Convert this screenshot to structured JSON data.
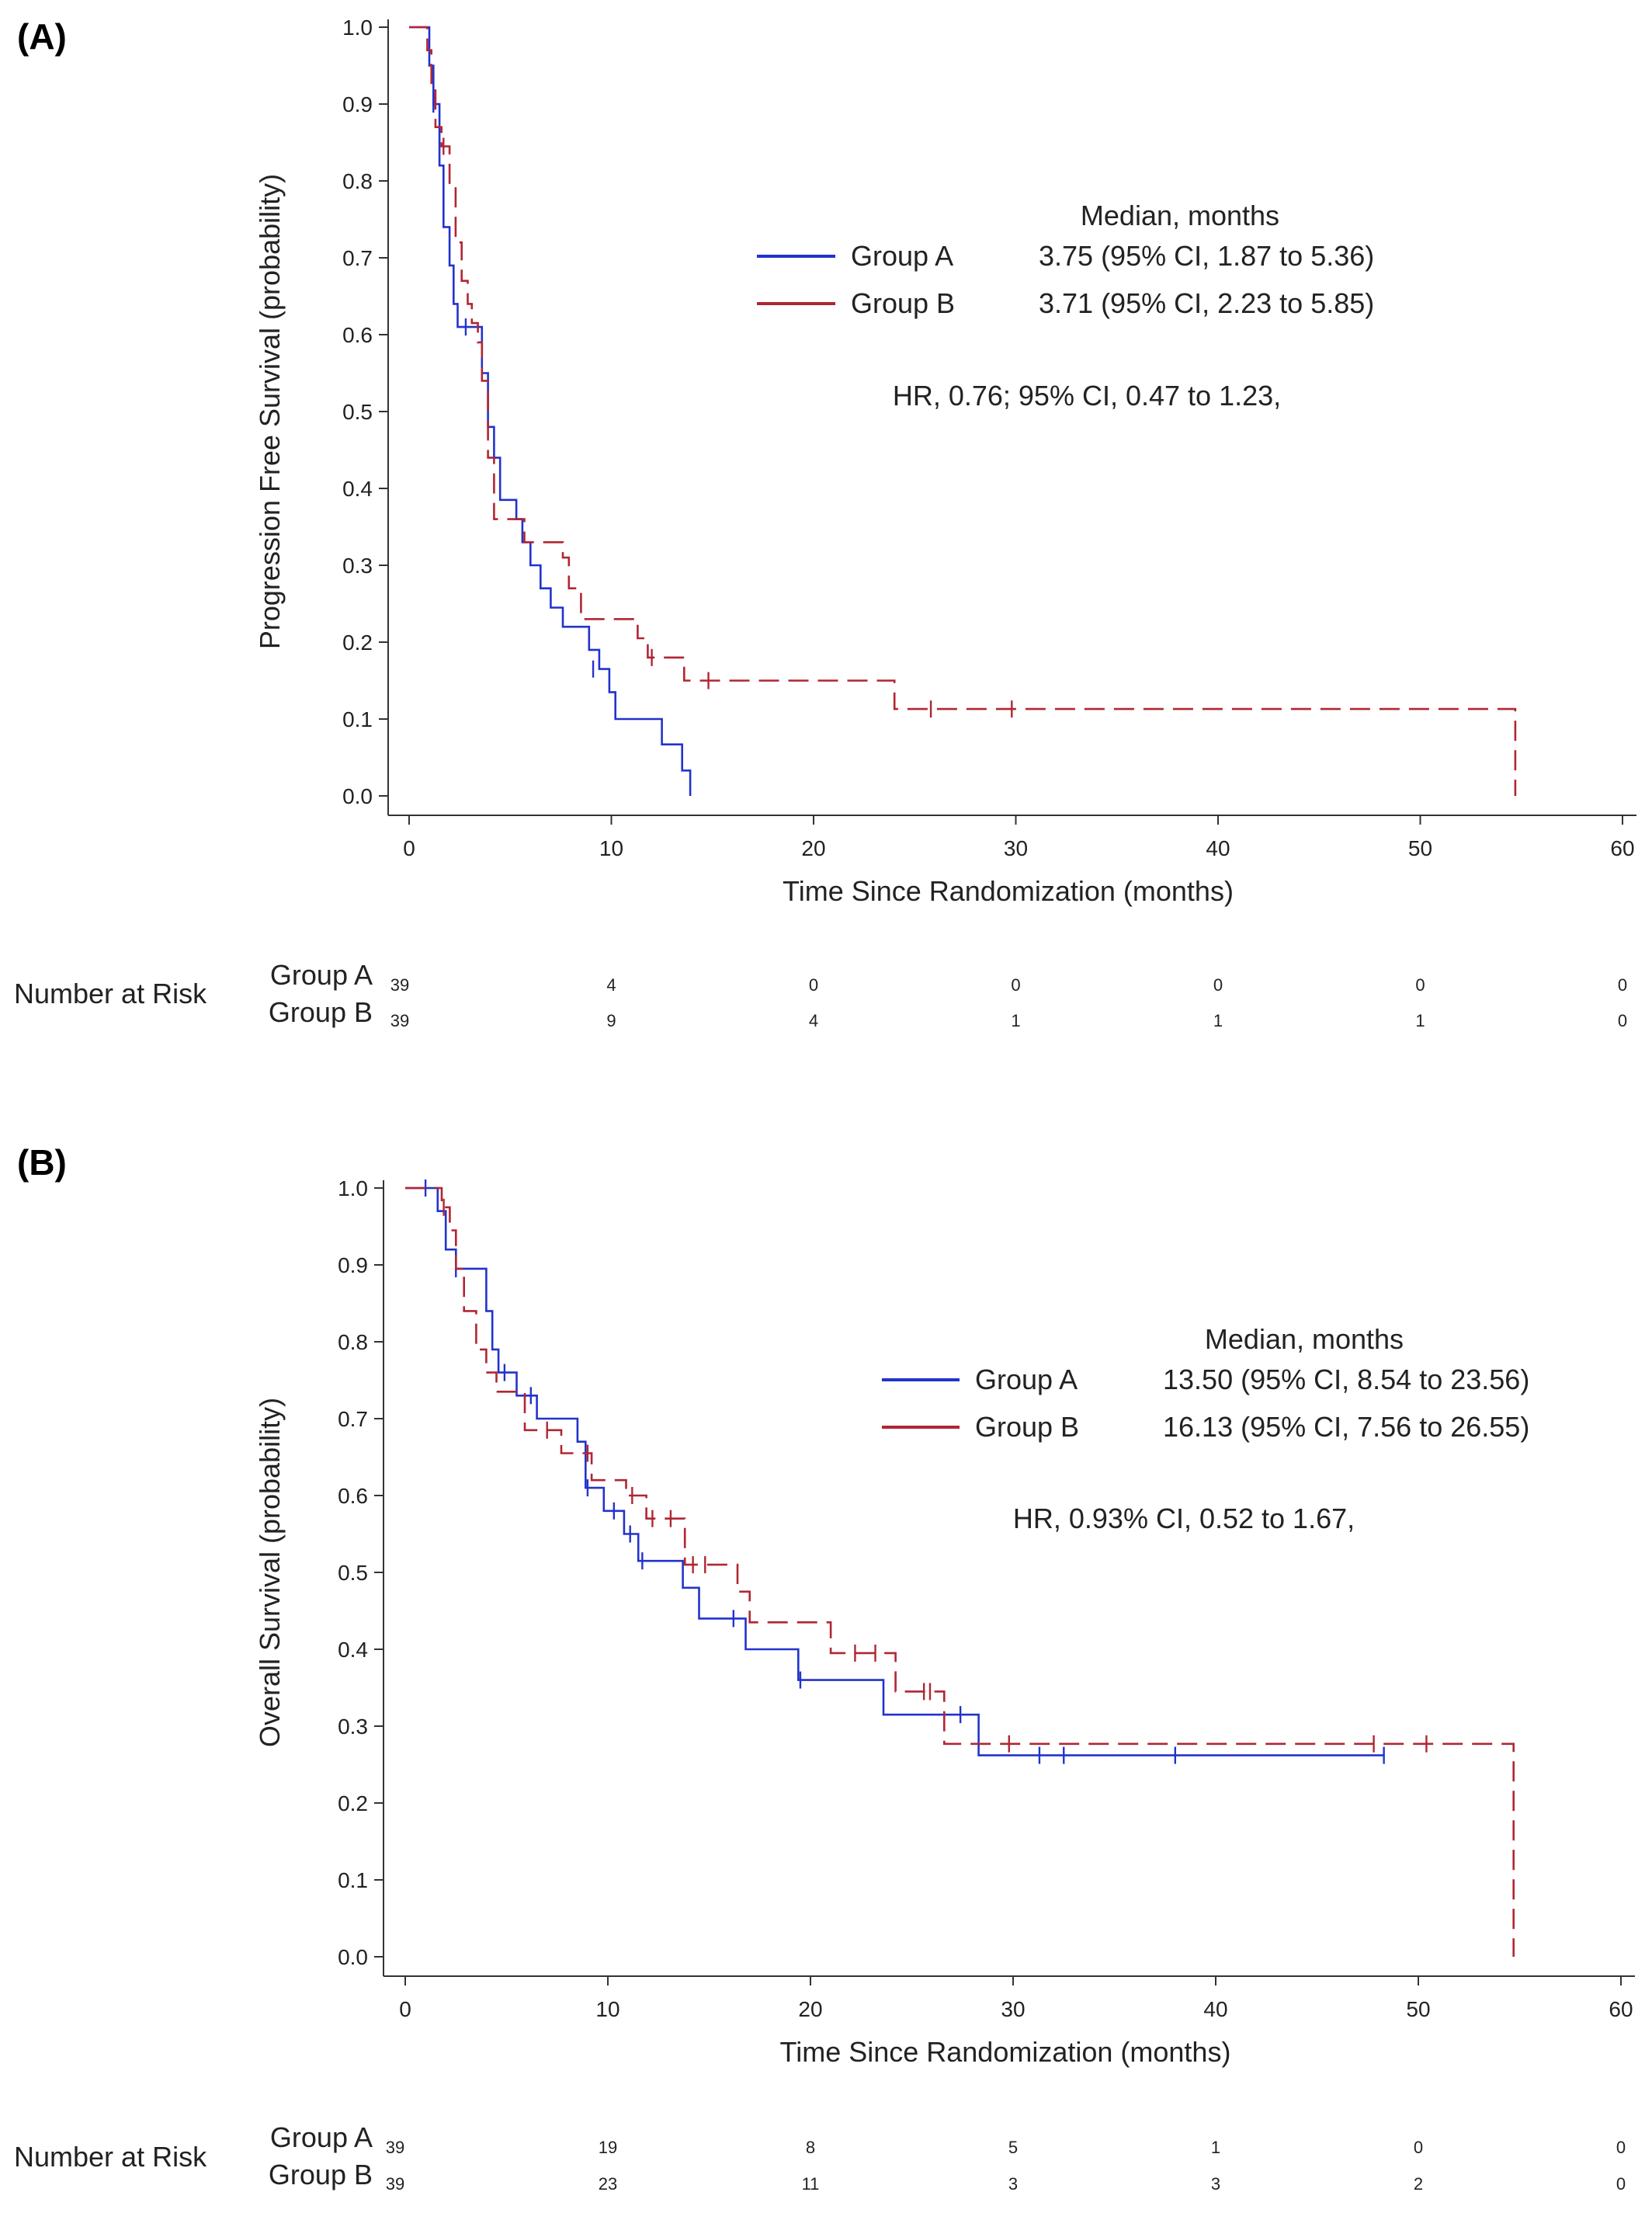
{
  "chart_data": [
    {
      "type": "line",
      "panel_label": "(A)",
      "xlabel": "Time Since Randomization (months)",
      "ylabel": "Progression Free Survival (probability)",
      "xlim": [
        0,
        60
      ],
      "ylim": [
        0,
        1.0
      ],
      "xticks": [
        0,
        10,
        20,
        30,
        40,
        50,
        60
      ],
      "yticks": [
        0.0,
        0.1,
        0.2,
        0.3,
        0.4,
        0.5,
        0.6,
        0.7,
        0.8,
        0.9,
        1.0
      ],
      "grid": false,
      "legend_position": "upper-right",
      "legend_header": "Median, months",
      "annotation": "HR, 0.76; 95% CI, 0.47 to 1.23,",
      "series": [
        {
          "name": "Group A",
          "median_text": "3.75 (95% CI, 1.87 to 5.36)",
          "color": "#2233cc",
          "dash": "solid",
          "steps": [
            [
              0,
              1.0
            ],
            [
              0.8,
              1.0
            ],
            [
              1.0,
              0.95
            ],
            [
              1.2,
              0.9
            ],
            [
              1.5,
              0.82
            ],
            [
              1.7,
              0.74
            ],
            [
              2.0,
              0.69
            ],
            [
              2.2,
              0.64
            ],
            [
              2.4,
              0.61
            ],
            [
              3.6,
              0.55
            ],
            [
              3.9,
              0.48
            ],
            [
              4.2,
              0.44
            ],
            [
              4.5,
              0.385
            ],
            [
              5.0,
              0.385
            ],
            [
              5.3,
              0.36
            ],
            [
              5.6,
              0.33
            ],
            [
              6.0,
              0.3
            ],
            [
              6.5,
              0.27
            ],
            [
              7.0,
              0.245
            ],
            [
              7.6,
              0.22
            ],
            [
              8.9,
              0.19
            ],
            [
              9.4,
              0.165
            ],
            [
              9.9,
              0.135
            ],
            [
              10.2,
              0.1
            ],
            [
              12.5,
              0.067
            ],
            [
              13.5,
              0.033
            ],
            [
              13.9,
              0.0
            ]
          ],
          "censors": [
            [
              1.2,
              0.9
            ],
            [
              2.8,
              0.61
            ],
            [
              9.1,
              0.165
            ]
          ]
        },
        {
          "name": "Group B",
          "median_text": "3.71 (95% CI, 2.23 to 5.85)",
          "color": "#b02633",
          "dash": "dashed",
          "steps": [
            [
              0,
              1.0
            ],
            [
              0.7,
              1.0
            ],
            [
              0.9,
              0.97
            ],
            [
              1.1,
              0.92
            ],
            [
              1.3,
              0.87
            ],
            [
              1.6,
              0.845
            ],
            [
              2.0,
              0.795
            ],
            [
              2.3,
              0.72
            ],
            [
              2.6,
              0.67
            ],
            [
              2.9,
              0.64
            ],
            [
              3.1,
              0.615
            ],
            [
              3.4,
              0.59
            ],
            [
              3.6,
              0.54
            ],
            [
              3.9,
              0.44
            ],
            [
              4.2,
              0.36
            ],
            [
              5.7,
              0.33
            ],
            [
              7.6,
              0.31
            ],
            [
              7.9,
              0.27
            ],
            [
              8.5,
              0.23
            ],
            [
              11.3,
              0.205
            ],
            [
              11.8,
              0.18
            ],
            [
              13.6,
              0.15
            ],
            [
              24.0,
              0.113
            ],
            [
              54.7,
              0.113
            ],
            [
              54.7,
              0.0
            ]
          ],
          "censors": [
            [
              1.7,
              0.845
            ],
            [
              12.0,
              0.18
            ],
            [
              14.8,
              0.15
            ],
            [
              25.8,
              0.113
            ],
            [
              29.8,
              0.113
            ]
          ]
        }
      ],
      "number_at_risk": {
        "title": "Number at Risk",
        "times": [
          0,
          10,
          20,
          30,
          40,
          50,
          60
        ],
        "rows": [
          {
            "group": "Group A",
            "values": [
              "39",
              "4",
              "0",
              "0",
              "0",
              "0",
              "0"
            ]
          },
          {
            "group": "Group B",
            "values": [
              "39",
              "9",
              "4",
              "1",
              "1",
              "1",
              "0"
            ]
          }
        ]
      }
    },
    {
      "type": "line",
      "panel_label": "(B)",
      "xlabel": "Time Since Randomization (months)",
      "ylabel": "Overall Survival (probability)",
      "xlim": [
        0,
        60
      ],
      "ylim": [
        0,
        1.0
      ],
      "xticks": [
        0,
        10,
        20,
        30,
        40,
        50,
        60
      ],
      "yticks": [
        0.0,
        0.1,
        0.2,
        0.3,
        0.4,
        0.5,
        0.6,
        0.7,
        0.8,
        0.9,
        1.0
      ],
      "grid": false,
      "legend_position": "upper-right",
      "legend_header": "Median, months",
      "annotation": "HR, 0.93% CI, 0.52 to 1.67,",
      "series": [
        {
          "name": "Group A",
          "median_text": "13.50 (95% CI, 8.54 to 23.56)",
          "color": "#2233cc",
          "dash": "solid",
          "steps": [
            [
              0,
              1.0
            ],
            [
              1.2,
              1.0
            ],
            [
              1.6,
              0.97
            ],
            [
              2.0,
              0.92
            ],
            [
              2.5,
              0.895
            ],
            [
              4.0,
              0.84
            ],
            [
              4.3,
              0.79
            ],
            [
              4.6,
              0.76
            ],
            [
              5.5,
              0.73
            ],
            [
              6.5,
              0.7
            ],
            [
              8.5,
              0.67
            ],
            [
              8.9,
              0.61
            ],
            [
              9.8,
              0.58
            ],
            [
              10.8,
              0.55
            ],
            [
              11.5,
              0.515
            ],
            [
              13.7,
              0.48
            ],
            [
              14.5,
              0.44
            ],
            [
              16.8,
              0.4
            ],
            [
              19.4,
              0.36
            ],
            [
              23.6,
              0.315
            ],
            [
              28.3,
              0.262
            ],
            [
              48.3,
              0.262
            ]
          ],
          "censors": [
            [
              1.0,
              1.0
            ],
            [
              2.5,
              0.895
            ],
            [
              4.9,
              0.76
            ],
            [
              6.2,
              0.73
            ],
            [
              9.0,
              0.61
            ],
            [
              10.3,
              0.58
            ],
            [
              11.1,
              0.55
            ],
            [
              11.7,
              0.515
            ],
            [
              16.2,
              0.44
            ],
            [
              19.5,
              0.36
            ],
            [
              27.4,
              0.315
            ],
            [
              31.3,
              0.262
            ],
            [
              32.5,
              0.262
            ],
            [
              38.0,
              0.262
            ],
            [
              48.3,
              0.262
            ]
          ]
        },
        {
          "name": "Group B",
          "median_text": "16.13 (95% CI, 7.56 to 26.55)",
          "color": "#b02633",
          "dash": "dashed",
          "steps": [
            [
              0,
              1.0
            ],
            [
              1.5,
              1.0
            ],
            [
              1.8,
              0.975
            ],
            [
              2.2,
              0.945
            ],
            [
              2.5,
              0.895
            ],
            [
              2.9,
              0.84
            ],
            [
              3.5,
              0.79
            ],
            [
              4.0,
              0.76
            ],
            [
              4.5,
              0.735
            ],
            [
              5.9,
              0.685
            ],
            [
              7.7,
              0.655
            ],
            [
              9.2,
              0.62
            ],
            [
              10.9,
              0.6
            ],
            [
              11.9,
              0.57
            ],
            [
              13.8,
              0.51
            ],
            [
              16.4,
              0.475
            ],
            [
              17.0,
              0.435
            ],
            [
              21.0,
              0.395
            ],
            [
              24.2,
              0.345
            ],
            [
              26.6,
              0.277
            ],
            [
              54.7,
              0.277
            ],
            [
              54.7,
              0.0
            ]
          ],
          "censors": [
            [
              1.9,
              0.975
            ],
            [
              7.0,
              0.685
            ],
            [
              9.0,
              0.655
            ],
            [
              11.2,
              0.6
            ],
            [
              12.2,
              0.57
            ],
            [
              13.1,
              0.57
            ],
            [
              14.2,
              0.51
            ],
            [
              14.8,
              0.51
            ],
            [
              22.2,
              0.395
            ],
            [
              23.2,
              0.395
            ],
            [
              25.6,
              0.345
            ],
            [
              25.9,
              0.345
            ],
            [
              29.8,
              0.277
            ],
            [
              47.8,
              0.277
            ],
            [
              50.4,
              0.277
            ]
          ]
        }
      ],
      "number_at_risk": {
        "title": "Number at Risk",
        "times": [
          0,
          10,
          20,
          30,
          40,
          50,
          60
        ],
        "rows": [
          {
            "group": "Group A",
            "values": [
              "39",
              "19",
              "8",
              "5",
              "1",
              "0",
              "0"
            ]
          },
          {
            "group": "Group B",
            "values": [
              "39",
              "23",
              "11",
              "3",
              "3",
              "2",
              "0"
            ]
          }
        ]
      }
    }
  ]
}
